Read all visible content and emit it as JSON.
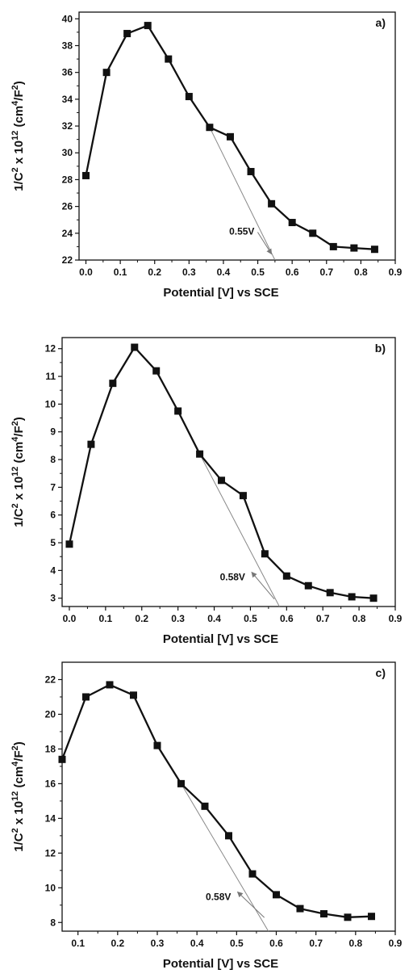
{
  "chart_data": [
    {
      "type": "line",
      "panel_label": "a)",
      "xlabel": "Potential [V] vs SCE",
      "ylabel_parts": [
        "1/C",
        "2",
        " x 10",
        "12",
        " (cm",
        "4",
        "/F",
        "2",
        ")"
      ],
      "xlim": [
        -0.02,
        0.9
      ],
      "ylim": [
        22,
        40.5
      ],
      "x_ticks": [
        0.0,
        0.1,
        0.2,
        0.3,
        0.4,
        0.5,
        0.6,
        0.7,
        0.8,
        0.9
      ],
      "x_tick_labels": [
        "0.0",
        "0.1",
        "0.2",
        "0.3",
        "0.4",
        "0.5",
        "0.6",
        "0.7",
        "0.8",
        "0.9"
      ],
      "y_ticks": [
        22,
        24,
        26,
        28,
        30,
        32,
        34,
        36,
        38,
        40
      ],
      "y_tick_labels": [
        "22",
        "24",
        "26",
        "28",
        "30",
        "32",
        "34",
        "36",
        "38",
        "40"
      ],
      "series": [
        {
          "x": [
            0.0,
            0.06,
            0.12,
            0.18,
            0.24,
            0.3,
            0.36,
            0.42,
            0.48,
            0.54,
            0.6,
            0.66,
            0.72,
            0.78,
            0.84
          ],
          "y": [
            28.3,
            36.0,
            38.9,
            39.5,
            37.0,
            34.2,
            31.9,
            31.2,
            28.6,
            26.2,
            24.8,
            24.0,
            23.0,
            22.9,
            22.8
          ]
        }
      ],
      "fit_line": {
        "x": [
          0.36,
          0.55
        ],
        "y": [
          31.9,
          22
        ]
      },
      "annotation": {
        "text": "0.55V",
        "x": 0.495,
        "y": 23.9,
        "arrow_to": [
          0.545,
          22.2
        ]
      }
    },
    {
      "type": "line",
      "panel_label": "b)",
      "xlabel": "Potential [V] vs SCE",
      "ylabel_parts": [
        "1/C",
        "2",
        " x 10",
        "12",
        " (cm",
        "4",
        "/F",
        "2",
        ")"
      ],
      "xlim": [
        -0.02,
        0.9
      ],
      "ylim": [
        2.7,
        12.4
      ],
      "x_ticks": [
        0.0,
        0.1,
        0.2,
        0.3,
        0.4,
        0.5,
        0.6,
        0.7,
        0.8,
        0.9
      ],
      "x_tick_labels": [
        "0.0",
        "0.1",
        "0.2",
        "0.3",
        "0.4",
        "0.5",
        "0.6",
        "0.7",
        "0.8",
        "0.9"
      ],
      "y_ticks": [
        3,
        4,
        5,
        6,
        7,
        8,
        9,
        10,
        11,
        12
      ],
      "y_tick_labels": [
        "3",
        "4",
        "5",
        "6",
        "7",
        "8",
        "9",
        "10",
        "11",
        "12"
      ],
      "series": [
        {
          "x": [
            0.0,
            0.06,
            0.12,
            0.18,
            0.24,
            0.3,
            0.36,
            0.42,
            0.48,
            0.54,
            0.6,
            0.66,
            0.72,
            0.78,
            0.84
          ],
          "y": [
            4.95,
            8.55,
            10.75,
            12.05,
            11.2,
            9.75,
            8.2,
            7.25,
            6.7,
            4.6,
            3.8,
            3.45,
            3.2,
            3.05,
            3.0
          ]
        }
      ],
      "fit_line": {
        "x": [
          0.36,
          0.58
        ],
        "y": [
          8.2,
          2.7
        ]
      },
      "annotation": {
        "text": "0.58V",
        "x": 0.49,
        "y": 3.65,
        "arrow_to": [
          0.575,
          2.85
        ]
      }
    },
    {
      "type": "line",
      "panel_label": "c)",
      "xlabel": "Potential [V] vs SCE",
      "ylabel_parts": [
        "1/C",
        "2",
        " x 10",
        "12",
        " (cm",
        "4",
        "/F",
        "2",
        ")"
      ],
      "xlim": [
        0.06,
        0.9
      ],
      "ylim": [
        7.5,
        23
      ],
      "x_ticks": [
        0.1,
        0.2,
        0.3,
        0.4,
        0.5,
        0.6,
        0.7,
        0.8,
        0.9
      ],
      "x_tick_labels": [
        "0.1",
        "0.2",
        "0.3",
        "0.4",
        "0.5",
        "0.6",
        "0.7",
        "0.8",
        "0.9"
      ],
      "y_ticks": [
        8,
        10,
        12,
        14,
        16,
        18,
        20,
        22
      ],
      "y_tick_labels": [
        "8",
        "10",
        "12",
        "14",
        "16",
        "18",
        "20",
        "22"
      ],
      "series": [
        {
          "x": [
            0.06,
            0.12,
            0.18,
            0.24,
            0.3,
            0.36,
            0.42,
            0.48,
            0.54,
            0.6,
            0.66,
            0.72,
            0.78,
            0.84
          ],
          "y": [
            17.4,
            21.0,
            21.7,
            21.1,
            18.2,
            16.0,
            14.7,
            13.0,
            10.8,
            9.6,
            8.8,
            8.5,
            8.3,
            8.35
          ]
        }
      ],
      "fit_line": {
        "x": [
          0.36,
          0.58
        ],
        "y": [
          16.0,
          7.5
        ]
      },
      "annotation": {
        "text": "0.58V",
        "x": 0.49,
        "y": 9.3,
        "arrow_to": [
          0.578,
          8.1
        ]
      }
    }
  ]
}
